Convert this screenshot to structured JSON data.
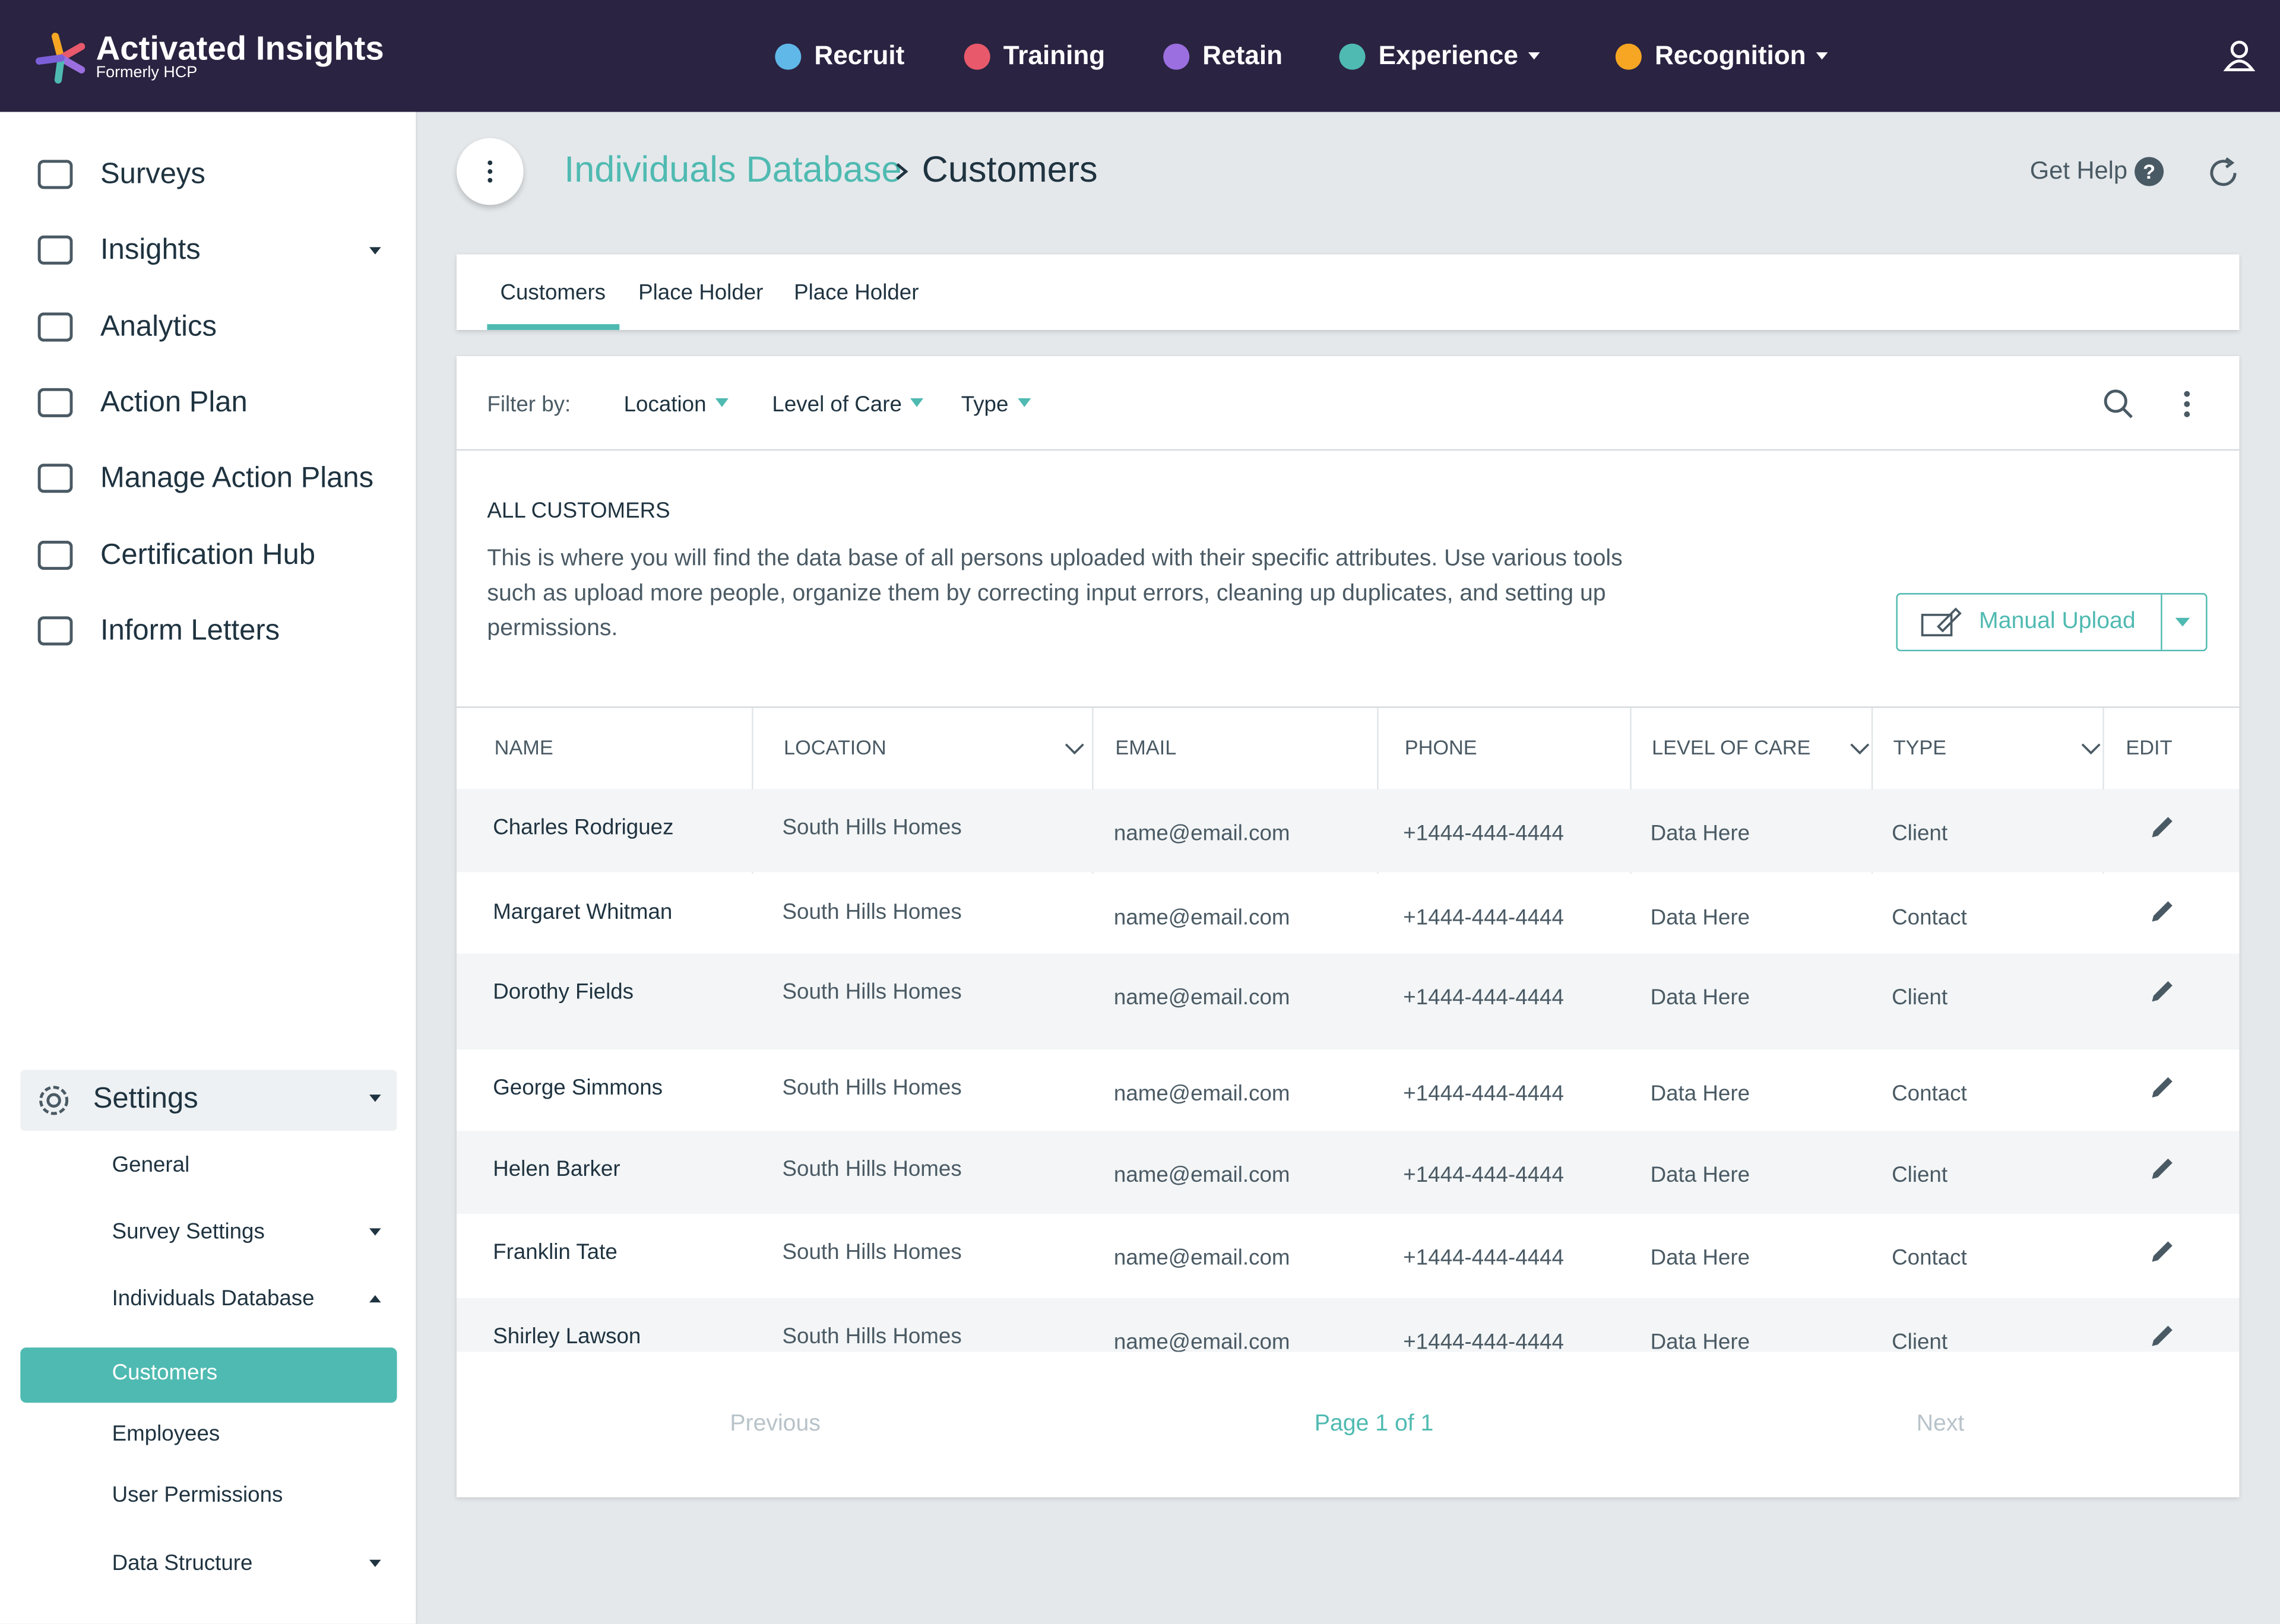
{
  "header": {
    "brand": "Activated Insights",
    "brand_sub": "Formerly HCP",
    "nav": [
      "Recruit",
      "Training",
      "Retain",
      "Experience",
      "Recognition"
    ]
  },
  "sidebar": {
    "items": [
      "Surveys",
      "Insights",
      "Analytics",
      "Action Plan",
      "Manage Action Plans",
      "Certification Hub",
      "Inform Letters"
    ],
    "settings": "Settings",
    "sub_items": [
      "General",
      "Survey Settings",
      "Individuals Database",
      "Customers",
      "Employees",
      "User Permissions",
      "Data Structure"
    ]
  },
  "page": {
    "breadcrumb": [
      "Individuals Database",
      "Customers"
    ],
    "help": "Get Help",
    "tabs": [
      "Customers",
      "Place Holder",
      "Place Holder"
    ],
    "filter_label": "Filter by:",
    "filters": [
      "Location",
      "Level of Care",
      "Type"
    ],
    "section_title": "ALL CUSTOMERS",
    "description": "This is where you will find the data base of all persons uploaded with their specific attributes. Use various tools such as upload more people, organize them by correcting input errors, cleaning up duplicates, and setting up permissions.",
    "upload_button": "Manual Upload"
  },
  "table": {
    "columns": [
      "NAME",
      "LOCATION",
      "EMAIL",
      "PHONE",
      "LEVEL OF CARE",
      "TYPE",
      "EDIT"
    ],
    "rows": [
      [
        "Charles Rodriguez",
        "South Hills Homes",
        "name@email.com",
        "+1444-444-4444",
        "Data Here",
        "Client"
      ],
      [
        "Margaret Whitman",
        "South Hills Homes",
        "name@email.com",
        "+1444-444-4444",
        "Data Here",
        "Contact"
      ],
      [
        "Dorothy Fields",
        "South Hills Homes",
        "name@email.com",
        "+1444-444-4444",
        "Data Here",
        "Client"
      ],
      [
        "George Simmons",
        "South Hills Homes",
        "name@email.com",
        "+1444-444-4444",
        "Data Here",
        "Contact"
      ],
      [
        "Helen Barker",
        "South Hills Homes",
        "name@email.com",
        "+1444-444-4444",
        "Data Here",
        "Client"
      ],
      [
        "Franklin Tate",
        "South Hills Homes",
        "name@email.com",
        "+1444-444-4444",
        "Data Here",
        "Contact"
      ],
      [
        "Shirley Lawson",
        "South Hills Homes",
        "name@email.com",
        "+1444-444-4444",
        "Data Here",
        "Client"
      ]
    ]
  },
  "pagination": {
    "previous": "Previous",
    "page": "Page 1 of 1",
    "next": "Next"
  }
}
